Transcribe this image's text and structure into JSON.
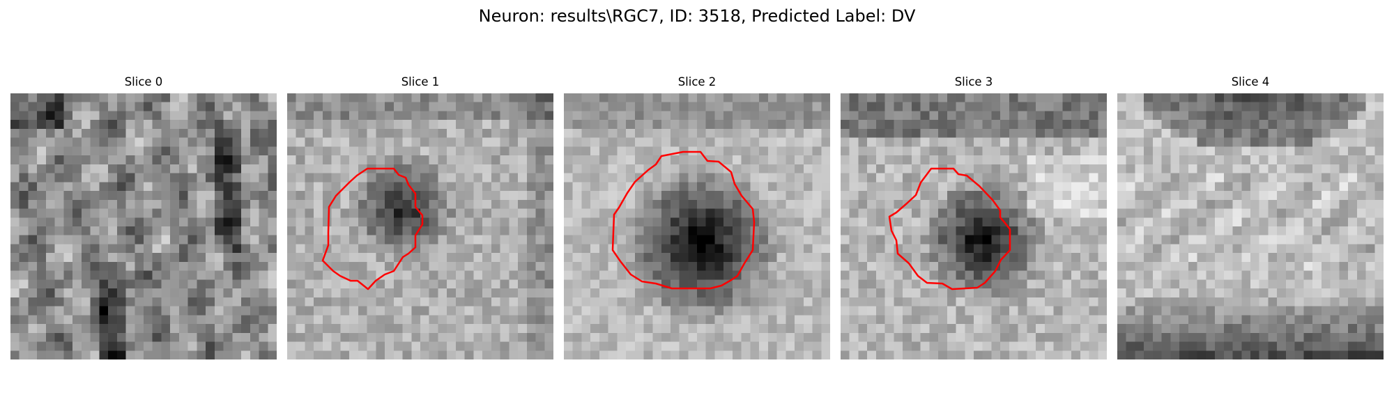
{
  "figure": {
    "title": "Neuron: results\\RGC7, ID: 3518, Predicted Label: DV"
  },
  "colors": {
    "contour": "#ff0000",
    "background": "#ffffff",
    "colormap": "gray"
  },
  "slices": [
    {
      "label": "Slice 0",
      "has_contour": false,
      "image_description": "grayscale noisy cellular texture, no marked cell"
    },
    {
      "label": "Slice 1",
      "has_contour": true,
      "image_description": "grayscale texture with dark blob slightly upper-left of center, outlined in red"
    },
    {
      "label": "Slice 2",
      "has_contour": true,
      "image_description": "grayscale texture with large dark blob centered, outlined in red"
    },
    {
      "label": "Slice 3",
      "has_contour": true,
      "image_description": "grayscale texture with dark blob centered, outlined in red"
    },
    {
      "label": "Slice 4",
      "has_contour": false,
      "image_description": "grayscale texture with dark band at top and bottom, no marked cell"
    }
  ]
}
